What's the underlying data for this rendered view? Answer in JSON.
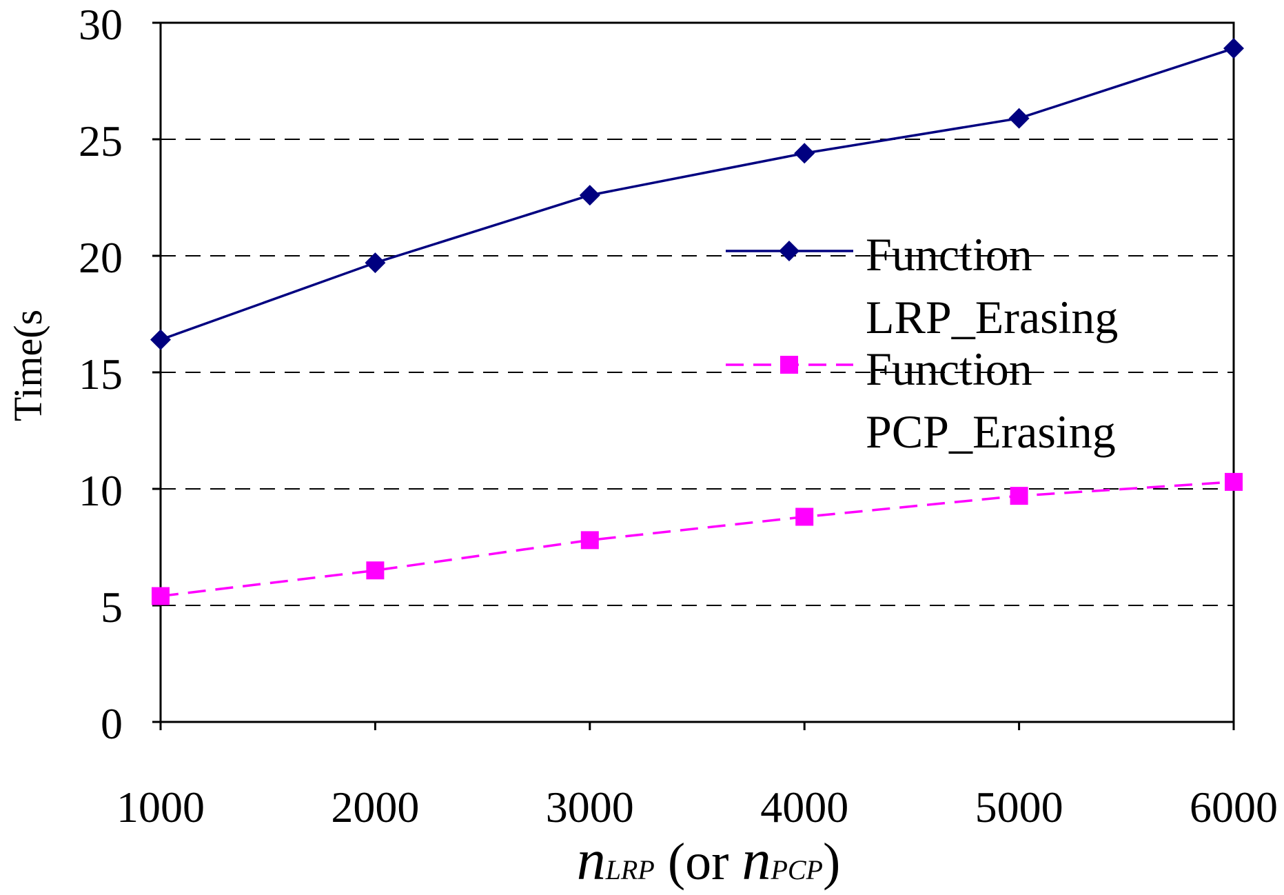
{
  "chart_data": {
    "type": "line",
    "title": "",
    "ylabel": "Time(s",
    "xlabel": {
      "n_symbol": "n",
      "lrp_sub": "LRP",
      "mid_text": " (or ",
      "pcp_sub": "PCP",
      "end_text": ")"
    },
    "x": [
      1000,
      2000,
      3000,
      4000,
      5000,
      6000
    ],
    "x_tick_labels": [
      "1000",
      "2000",
      "3000",
      "4000",
      "5000",
      "6000"
    ],
    "ylim": [
      0,
      30
    ],
    "y_tick_labels": [
      "0",
      "5",
      "10",
      "15",
      "20",
      "25",
      "30"
    ],
    "y_ticks": [
      0,
      5,
      10,
      15,
      20,
      25,
      30
    ],
    "grid": "horizontal-dashed",
    "legend_position": "center-right",
    "series": [
      {
        "name_line1": "Function",
        "name_line2": "LRP_Erasing",
        "values": [
          16.4,
          19.7,
          22.6,
          24.4,
          25.9,
          28.9
        ],
        "color": "#000080",
        "marker": "diamond",
        "dash": "solid"
      },
      {
        "name_line1": "Function",
        "name_line2": "PCP_Erasing",
        "values": [
          5.4,
          6.5,
          7.8,
          8.8,
          9.7,
          10.3
        ],
        "color": "#FF00FF",
        "marker": "square",
        "dash": "dashed"
      }
    ]
  }
}
